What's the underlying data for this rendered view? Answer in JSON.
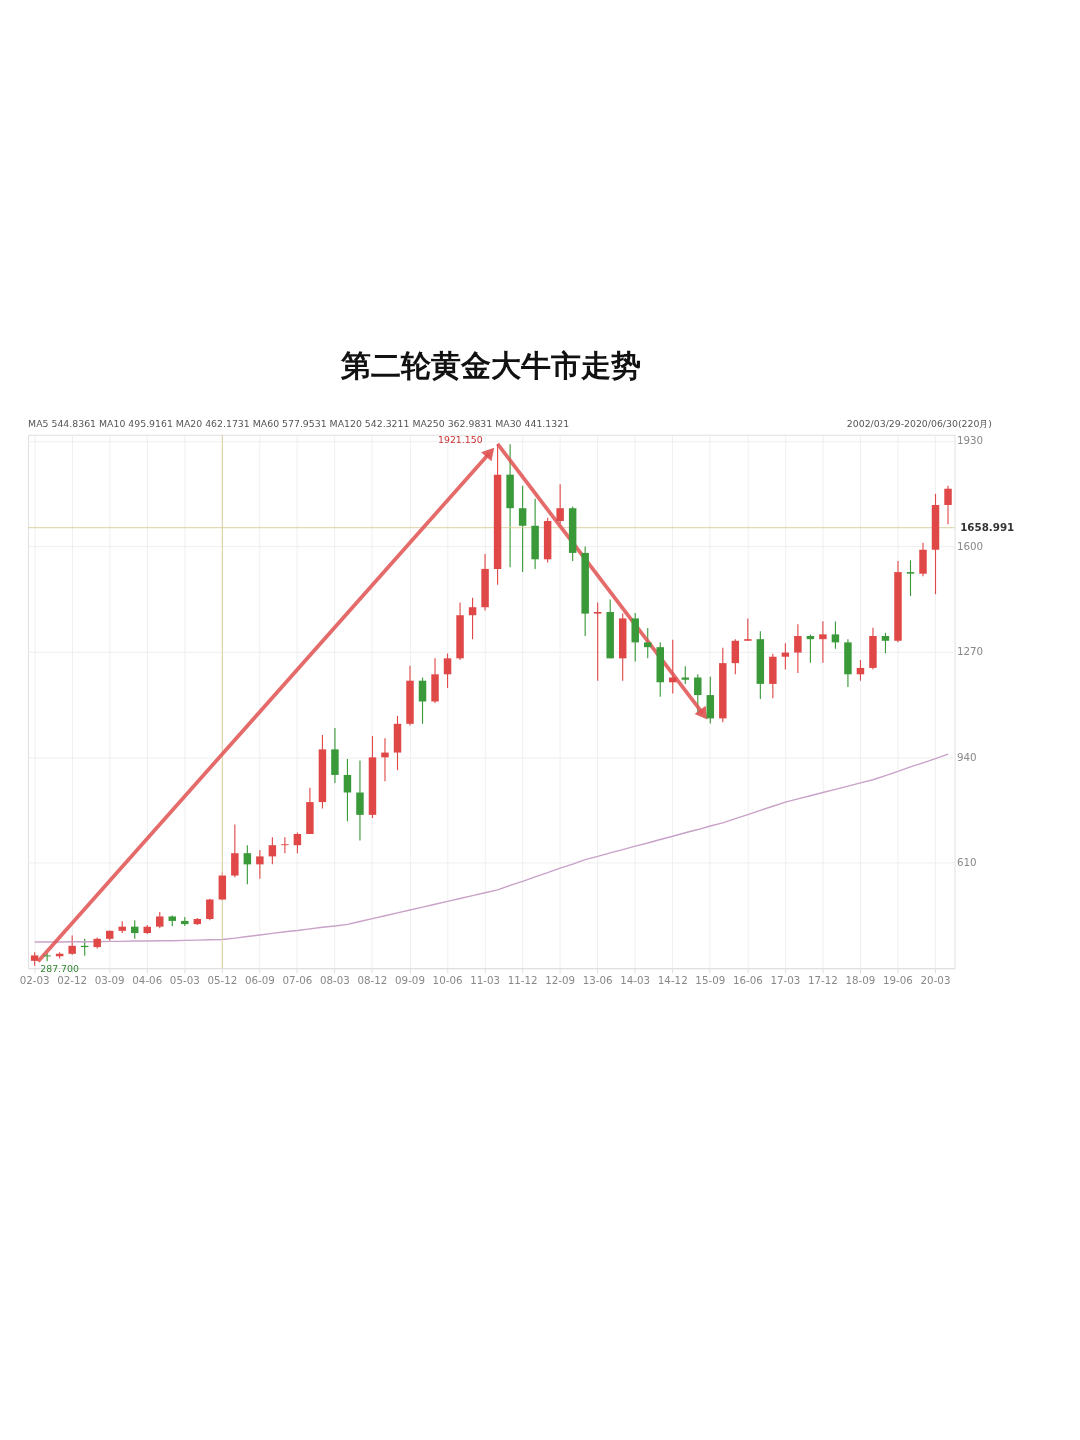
{
  "chart_data": {
    "type": "candlestick",
    "title": "第二轮黄金大牛市走势",
    "categories": [
      "02-03",
      null,
      null,
      "02-12",
      null,
      null,
      "03-09",
      null,
      null,
      "04-06",
      null,
      null,
      "05-03",
      null,
      null,
      "05-12",
      null,
      null,
      "06-09",
      null,
      null,
      "07-06",
      null,
      null,
      "08-03",
      null,
      null,
      "08-12",
      null,
      null,
      "09-09",
      null,
      null,
      "10-06",
      null,
      null,
      "11-03",
      null,
      null,
      "11-12",
      null,
      null,
      "12-09",
      null,
      null,
      "13-06",
      null,
      null,
      "14-03",
      null,
      null,
      "14-12",
      null,
      null,
      "15-09",
      null,
      null,
      "16-06",
      null,
      null,
      "17-03",
      null,
      null,
      "17-12",
      null,
      null,
      "18-09",
      null,
      null,
      "19-06",
      null,
      null,
      "20-03",
      null
    ],
    "ohlc": [
      [
        303,
        330,
        287.7,
        320
      ],
      [
        320,
        327,
        302,
        317
      ],
      [
        317,
        330,
        310,
        325
      ],
      [
        325,
        382,
        322,
        350
      ],
      [
        350,
        372,
        319,
        346
      ],
      [
        346,
        376,
        342,
        372
      ],
      [
        372,
        398,
        366,
        397
      ],
      [
        397,
        427,
        390,
        410
      ],
      [
        410,
        430,
        372,
        390
      ],
      [
        390,
        415,
        387,
        410
      ],
      [
        410,
        456,
        405,
        442
      ],
      [
        442,
        445,
        411,
        428
      ],
      [
        428,
        440,
        412,
        418
      ],
      [
        418,
        437,
        415,
        434
      ],
      [
        434,
        497,
        430,
        495
      ],
      [
        495,
        580,
        490,
        570
      ],
      [
        570,
        730,
        565,
        640
      ],
      [
        640,
        665,
        543,
        605
      ],
      [
        605,
        650,
        560,
        630
      ],
      [
        630,
        690,
        605,
        665
      ],
      [
        665,
        690,
        640,
        668
      ],
      [
        665,
        705,
        640,
        700
      ],
      [
        700,
        845,
        700,
        800
      ],
      [
        800,
        1010,
        780,
        965
      ],
      [
        965,
        1032,
        860,
        885
      ],
      [
        885,
        935,
        740,
        830
      ],
      [
        830,
        930,
        680,
        760
      ],
      [
        760,
        1007,
        750,
        940
      ],
      [
        940,
        1000,
        865,
        955
      ],
      [
        955,
        1070,
        900,
        1045
      ],
      [
        1045,
        1227,
        1040,
        1180
      ],
      [
        1180,
        1190,
        1045,
        1115
      ],
      [
        1115,
        1250,
        1110,
        1200
      ],
      [
        1200,
        1265,
        1157,
        1250
      ],
      [
        1250,
        1425,
        1245,
        1385
      ],
      [
        1385,
        1440,
        1310,
        1410
      ],
      [
        1410,
        1577,
        1400,
        1530
      ],
      [
        1530,
        1921.15,
        1480,
        1825
      ],
      [
        1825,
        1920,
        1535,
        1720
      ],
      [
        1720,
        1790,
        1520,
        1665
      ],
      [
        1665,
        1750,
        1530,
        1560
      ],
      [
        1560,
        1690,
        1550,
        1680
      ],
      [
        1680,
        1795,
        1670,
        1720
      ],
      [
        1720,
        1725,
        1555,
        1580
      ],
      [
        1580,
        1600,
        1320,
        1390
      ],
      [
        1390,
        1425,
        1180,
        1395
      ],
      [
        1395,
        1434,
        1250,
        1250
      ],
      [
        1250,
        1390,
        1180,
        1375
      ],
      [
        1375,
        1392,
        1240,
        1300
      ],
      [
        1300,
        1345,
        1250,
        1285
      ],
      [
        1285,
        1300,
        1130,
        1175
      ],
      [
        1175,
        1308,
        1140,
        1190
      ],
      [
        1190,
        1225,
        1170,
        1183
      ],
      [
        1190,
        1200,
        1077,
        1135
      ],
      [
        1135,
        1192,
        1046,
        1062
      ],
      [
        1062,
        1283,
        1050,
        1235
      ],
      [
        1235,
        1310,
        1200,
        1305
      ],
      [
        1305,
        1375,
        1305,
        1310
      ],
      [
        1310,
        1335,
        1123,
        1170
      ],
      [
        1170,
        1264,
        1125,
        1255
      ],
      [
        1255,
        1297,
        1215,
        1268
      ],
      [
        1268,
        1357,
        1204,
        1320
      ],
      [
        1320,
        1325,
        1236,
        1310
      ],
      [
        1310,
        1366,
        1236,
        1325
      ],
      [
        1325,
        1365,
        1280,
        1300
      ],
      [
        1300,
        1310,
        1160,
        1200
      ],
      [
        1200,
        1245,
        1180,
        1220
      ],
      [
        1220,
        1346,
        1215,
        1320
      ],
      [
        1320,
        1330,
        1266,
        1305
      ],
      [
        1305,
        1555,
        1300,
        1520
      ],
      [
        1520,
        1557,
        1445,
        1515
      ],
      [
        1515,
        1612,
        1507,
        1590
      ],
      [
        1590,
        1765,
        1451,
        1730
      ],
      [
        1730,
        1790,
        1670,
        1781
      ]
    ],
    "series": [
      {
        "type": "line",
        "color": "#c8a2c8",
        "values": [
          362,
          362,
          362,
          363,
          363,
          363,
          364,
          364,
          365,
          365,
          366,
          366,
          367,
          368,
          369,
          370,
          374,
          379,
          384,
          389,
          394,
          398,
          403,
          408,
          412,
          417,
          426,
          435,
          444,
          453,
          462,
          471,
          480,
          489,
          498,
          507,
          516,
          525,
          539,
          552,
          566,
          579,
          593,
          606,
          620,
          630,
          641,
          651,
          662,
          672,
          683,
          693,
          704,
          714,
          725,
          735,
          748,
          761,
          774,
          787,
          800,
          810,
          820,
          830,
          840,
          850,
          860,
          870,
          883,
          896,
          910,
          923,
          936,
          950
        ]
      }
    ],
    "ylim": [
      280,
      1950
    ],
    "yticks": [
      610,
      940,
      1270,
      1600,
      1930
    ],
    "grid": true,
    "ref_lines": [
      {
        "axis": "y",
        "value": 1658.991,
        "label": "1658.991",
        "color": "#d8cf9c"
      },
      {
        "axis": "x",
        "value": "05-12",
        "color": "#d8cf9c"
      }
    ],
    "annotations": [
      "MA5 544.8361 MA10 495.9161 MA20 462.1731 MA60 577.9531 MA120 542.3211 MA250 362.9831 MA30 441.1321",
      "2002/03/29-2020/06/30(220月)",
      "1921.150",
      {
        "text": "287.700",
        "x": "02-03",
        "y": 287.7
      }
    ]
  }
}
